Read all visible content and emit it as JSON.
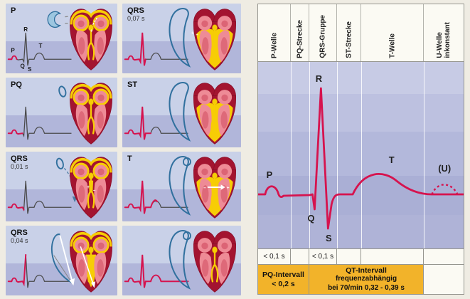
{
  "figure": {
    "left_panels": [
      {
        "label": "P",
        "duration": "",
        "phase": "p"
      },
      {
        "label": "QRS",
        "duration": "0,07 s",
        "phase": "qrs-late"
      },
      {
        "label": "PQ",
        "duration": "",
        "phase": "pq"
      },
      {
        "label": "ST",
        "duration": "",
        "phase": "st"
      },
      {
        "label": "QRS",
        "duration": "0,01 s",
        "phase": "qrs-early"
      },
      {
        "label": "T",
        "duration": "",
        "phase": "t"
      },
      {
        "label": "QRS",
        "duration": "0,04 s",
        "phase": "qrs-mid"
      },
      {
        "label": "",
        "duration": "",
        "phase": "rest"
      }
    ],
    "panel1_ecg_labels": {
      "p": "P",
      "q": "Q",
      "r": "R",
      "s": "S",
      "t": "T"
    },
    "heart_marks": {
      "plus": "+",
      "minus": "–"
    }
  },
  "right_chart": {
    "columns": [
      {
        "label": "P-Welle"
      },
      {
        "label": "PQ-Strecke"
      },
      {
        "label": "QRS-Gruppe"
      },
      {
        "label": "ST-Strecke"
      },
      {
        "label": "T-Welle"
      },
      {
        "label": "U-Welle\ninkonstant"
      }
    ],
    "wave_labels": {
      "p": "P",
      "q": "Q",
      "r": "R",
      "s": "S",
      "t": "T",
      "u": "(U)"
    },
    "durations": {
      "p_wave": "< 0,1 s",
      "qrs": "< 0,1 s"
    },
    "intervals": {
      "pq": {
        "line1": "PQ-Intervall",
        "line2": "< 0,2 s"
      },
      "qt": {
        "line1": "QT-Intervall",
        "line2": "frequenzabhängig",
        "line3": "bei 70/min 0,32 - 0,39 s"
      }
    }
  },
  "colors": {
    "ecg_red": "#d6134e",
    "trace_gray": "#4a4a4a",
    "loop_blue": "#31709e",
    "heart_dark": "#a31430",
    "heart_pink": "#ee8b96",
    "conduction_yellow": "#f7cd05",
    "interval_yellow": "#f2b32a",
    "panel_blue_top": "#c9d1e8",
    "panel_blue_bottom": "#b1b6da"
  }
}
